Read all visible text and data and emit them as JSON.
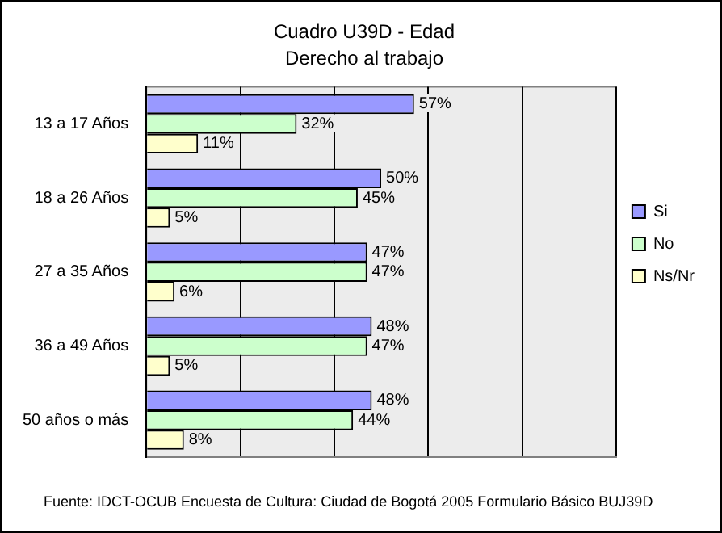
{
  "chart_data": {
    "type": "bar",
    "orientation": "horizontal",
    "title": "Cuadro U39D - Edad",
    "subtitle": "Derecho al trabajo",
    "categories": [
      "13 a 17 Años",
      "18 a 26 Años",
      "27 a 35 Años",
      "36 a 49 Años",
      "50 años o más"
    ],
    "series": [
      {
        "name": "Si",
        "color": "#9999ff",
        "values": [
          57,
          50,
          47,
          48,
          48
        ],
        "value_labels": [
          "57%",
          "50%",
          "47%",
          "48%",
          "48%"
        ]
      },
      {
        "name": "No",
        "color": "#ccffcc",
        "values": [
          32,
          45,
          47,
          47,
          44
        ],
        "value_labels": [
          "32%",
          "45%",
          "47%",
          "47%",
          "44%"
        ]
      },
      {
        "name": "Ns/Nr",
        "color": "#ffffcc",
        "values": [
          11,
          5,
          6,
          5,
          8
        ],
        "value_labels": [
          "11%",
          "5%",
          "6%",
          "5%",
          "8%"
        ]
      }
    ],
    "xlim": [
      0,
      100
    ],
    "xticks": [
      {
        "value": 0,
        "label": null
      },
      {
        "value": 20,
        "label": null
      },
      {
        "value": 40,
        "label": null
      },
      {
        "value": 60,
        "label": null
      },
      {
        "value": 80,
        "label": null
      },
      {
        "value": 100,
        "label": null
      }
    ],
    "grid": "x",
    "legend": "right",
    "annotations": [
      "Fuente: IDCT-OCUB Encuesta de Cultura: Ciudad de Bogotá 2005 Formulario Básico BUJ39D"
    ]
  }
}
